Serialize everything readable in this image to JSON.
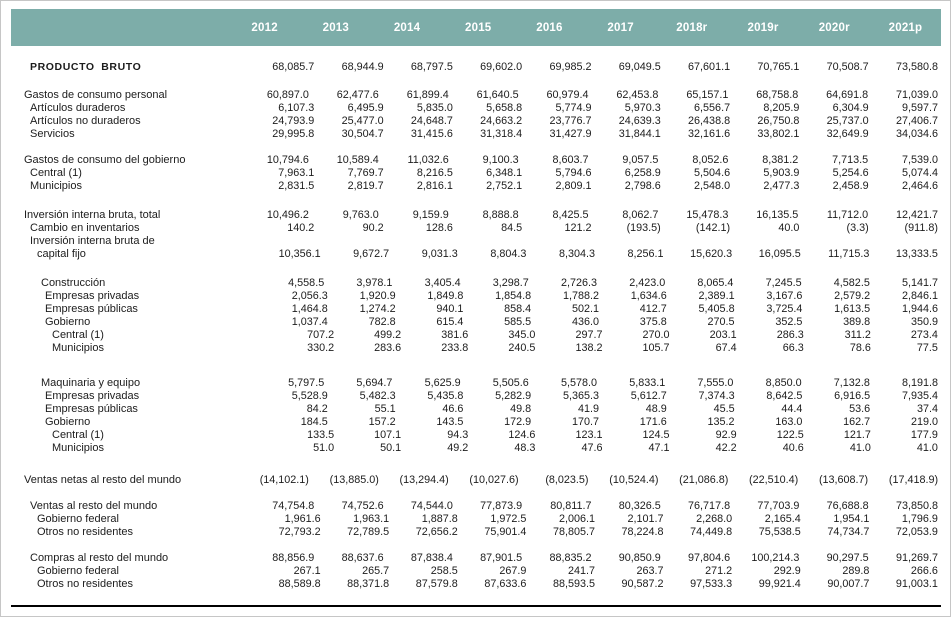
{
  "document": {
    "title_row_label": "PRODUCTO BRUTO",
    "accent_color": "#7dada9",
    "rule_color": "#000000"
  },
  "table": {
    "columns": [
      "2012",
      "2013",
      "2014",
      "2015",
      "2016",
      "2017",
      "2018r",
      "2019r",
      "2020r",
      "2021p"
    ],
    "rows": [
      {
        "type": "data",
        "label": "PRODUCTO BRUTO",
        "indent": 1,
        "caps": true,
        "values": [
          "68,085.7",
          "68,944.9",
          "68,797.5",
          "69,602.0",
          "69,985.2",
          "69,049.5",
          "67,601.1",
          "70,765.1",
          "70,508.7",
          "73,580.8"
        ]
      },
      {
        "type": "spacer",
        "h": 15
      },
      {
        "type": "data",
        "label": "Gastos de consumo personal",
        "indent": 0,
        "values": [
          "60,897.0",
          "62,477.6",
          "61,899.4",
          "61,640.5",
          "60,979.4",
          "62,453.8",
          "65,157.1",
          "68,758.8",
          "64,691.8",
          "71,039.0"
        ]
      },
      {
        "type": "data",
        "label": "Artículos duraderos",
        "indent": 1,
        "values": [
          "6,107.3",
          "6,495.9",
          "5,835.0",
          "5,658.8",
          "5,774.9",
          "5,970.3",
          "6,556.7",
          "8,205.9",
          "6,304.9",
          "9,597.7"
        ]
      },
      {
        "type": "data",
        "label": "Artículos no duraderos",
        "indent": 1,
        "values": [
          "24,793.9",
          "25,477.0",
          "24,648.7",
          "24,663.2",
          "23,776.7",
          "24,639.3",
          "26,438.8",
          "26,750.8",
          "25,737.0",
          "27,406.7"
        ]
      },
      {
        "type": "data",
        "label": "Servicios",
        "indent": 1,
        "values": [
          "29,995.8",
          "30,504.7",
          "31,415.6",
          "31,318.4",
          "31,427.9",
          "31,844.1",
          "32,161.6",
          "33,802.1",
          "32,649.9",
          "34,034.6"
        ]
      },
      {
        "type": "spacer",
        "h": 13
      },
      {
        "type": "data",
        "label": "Gastos de consumo del gobierno",
        "indent": 0,
        "values": [
          "10,794.6",
          "10,589.4",
          "11,032.6",
          "9,100.3",
          "8,603.7",
          "9,057.5",
          "8,052.6",
          "8,381.2",
          "7,713.5",
          "7,539.0"
        ]
      },
      {
        "type": "data",
        "label": "Central (1)",
        "indent": 1,
        "values": [
          "7,963.1",
          "7,769.7",
          "8,216.5",
          "6,348.1",
          "5,794.6",
          "6,258.9",
          "5,504.6",
          "5,903.9",
          "5,254.6",
          "5,074.4"
        ]
      },
      {
        "type": "data",
        "label": "Municipios",
        "indent": 1,
        "values": [
          "2,831.5",
          "2,819.7",
          "2,816.1",
          "2,752.1",
          "2,809.1",
          "2,798.6",
          "2,548.0",
          "2,477.3",
          "2,458.9",
          "2,464.6"
        ]
      },
      {
        "type": "spacer",
        "h": 16
      },
      {
        "type": "data",
        "label": "Inversión interna bruta, total",
        "indent": 0,
        "values": [
          "10,496.2",
          "9,763.0",
          "9,159.9",
          "8,888.8",
          "8,425.5",
          "8,062.7",
          "15,478.3",
          "16,135.5",
          "11,712.0",
          "12,421.7"
        ]
      },
      {
        "type": "data",
        "label": "Cambio en inventarios",
        "indent": 1,
        "values": [
          "140.2",
          "90.2",
          "128.6",
          "84.5",
          "121.2",
          "(193.5)",
          "(142.1)",
          "40.0",
          "(3.3)",
          "(911.8)"
        ]
      },
      {
        "type": "data",
        "label": "Inversión interna bruta de",
        "indent": 1,
        "values": [
          "",
          "",
          "",
          "",
          "",
          "",
          "",
          "",
          "",
          ""
        ]
      },
      {
        "type": "data",
        "label": "capital fijo",
        "indent": 2,
        "values": [
          "10,356.1",
          "9,672.7",
          "9,031.3",
          "8,804.3",
          "8,304.3",
          "8,256.1",
          "15,620.3",
          "16,095.5",
          "11,715.3",
          "13,333.5"
        ]
      },
      {
        "type": "spacer",
        "h": 16
      },
      {
        "type": "data",
        "label": "Construcción",
        "indent": 3,
        "values": [
          "4,558.5",
          "3,978.1",
          "3,405.4",
          "3,298.7",
          "2,726.3",
          "2,423.0",
          "8,065.4",
          "7,245.5",
          "4,582.5",
          "5,141.7"
        ]
      },
      {
        "type": "data",
        "label": "Empresas privadas",
        "indent": 4,
        "values": [
          "2,056.3",
          "1,920.9",
          "1,849.8",
          "1,854.8",
          "1,788.2",
          "1,634.6",
          "2,389.1",
          "3,167.6",
          "2,579.2",
          "2,846.1"
        ]
      },
      {
        "type": "data",
        "label": "Empresas públicas",
        "indent": 4,
        "values": [
          "1,464.8",
          "1,274.2",
          "940.1",
          "858.4",
          "502.1",
          "412.7",
          "5,405.8",
          "3,725.4",
          "1,613.5",
          "1,944.6"
        ]
      },
      {
        "type": "data",
        "label": "Gobierno",
        "indent": 4,
        "values": [
          "1,037.4",
          "782.8",
          "615.4",
          "585.5",
          "436.0",
          "375.8",
          "270.5",
          "352.5",
          "389.8",
          "350.9"
        ]
      },
      {
        "type": "data",
        "label": "Central  (1)",
        "indent": 5,
        "values": [
          "707.2",
          "499.2",
          "381.6",
          "345.0",
          "297.7",
          "270.0",
          "203.1",
          "286.3",
          "311.2",
          "273.4"
        ]
      },
      {
        "type": "data",
        "label": "Municipios",
        "indent": 5,
        "values": [
          "330.2",
          "283.6",
          "233.8",
          "240.5",
          "138.2",
          "105.7",
          "67.4",
          "66.3",
          "78.6",
          "77.5"
        ]
      },
      {
        "type": "spacer",
        "h": 22
      },
      {
        "type": "data",
        "label": "Maquinaria y equipo",
        "indent": 3,
        "values": [
          "5,797.5",
          "5,694.7",
          "5,625.9",
          "5,505.6",
          "5,578.0",
          "5,833.1",
          "7,555.0",
          "8,850.0",
          "7,132.8",
          "8,191.8"
        ]
      },
      {
        "type": "data",
        "label": "Empresas privadas",
        "indent": 4,
        "values": [
          "5,528.9",
          "5,482.3",
          "5,435.8",
          "5,282.9",
          "5,365.3",
          "5,612.7",
          "7,374.3",
          "8,642.5",
          "6,916.5",
          "7,935.4"
        ]
      },
      {
        "type": "data",
        "label": "Empresas públicas",
        "indent": 4,
        "values": [
          "84.2",
          "55.1",
          "46.6",
          "49.8",
          "41.9",
          "48.9",
          "45.5",
          "44.4",
          "53.6",
          "37.4"
        ]
      },
      {
        "type": "data",
        "label": "Gobierno",
        "indent": 4,
        "values": [
          "184.5",
          "157.2",
          "143.5",
          "172.9",
          "170.7",
          "171.6",
          "135.2",
          "163.0",
          "162.7",
          "219.0"
        ]
      },
      {
        "type": "data",
        "label": "Central  (1)",
        "indent": 5,
        "values": [
          "133.5",
          "107.1",
          "94.3",
          "124.6",
          "123.1",
          "124.5",
          "92.9",
          "122.5",
          "121.7",
          "177.9"
        ]
      },
      {
        "type": "data",
        "label": "Municipios",
        "indent": 5,
        "values": [
          "51.0",
          "50.1",
          "49.2",
          "48.3",
          "47.6",
          "47.1",
          "42.2",
          "40.6",
          "41.0",
          "41.0"
        ]
      },
      {
        "type": "spacer",
        "h": 19
      },
      {
        "type": "data",
        "label": "Ventas netas al resto del mundo",
        "indent": 0,
        "values": [
          "(14,102.1)",
          "(13,885.0)",
          "(13,294.4)",
          "(10,027.6)",
          "(8,023.5)",
          "(10,524.4)",
          "(21,086.8)",
          "(22,510.4)",
          "(13,608.7)",
          "(17,418.9)"
        ]
      },
      {
        "type": "spacer",
        "h": 13
      },
      {
        "type": "data",
        "label": "Ventas al resto del mundo",
        "indent": 1,
        "values": [
          "74,754.8",
          "74,752.6",
          "74,544.0",
          "77,873.9",
          "80,811.7",
          "80,326.5",
          "76,717.8",
          "77,703.9",
          "76,688.8",
          "73,850.8"
        ]
      },
      {
        "type": "data",
        "label": "Gobierno federal",
        "indent": 2,
        "values": [
          "1,961.6",
          "1,963.1",
          "1,887.8",
          "1,972.5",
          "2,006.1",
          "2,101.7",
          "2,268.0",
          "2,165.4",
          "1,954.1",
          "1,796.9"
        ]
      },
      {
        "type": "data",
        "label": "Otros no residentes",
        "indent": 2,
        "values": [
          "72,793.2",
          "72,789.5",
          "72,656.2",
          "75,901.4",
          "78,805.7",
          "78,224.8",
          "74,449.8",
          "75,538.5",
          "74,734.7",
          "72,053.9"
        ]
      },
      {
        "type": "spacer",
        "h": 13
      },
      {
        "type": "data",
        "label": "Compras al resto del mundo",
        "indent": 1,
        "values": [
          "88,856.9",
          "88,637.6",
          "87,838.4",
          "87,901.5",
          "88,835.2",
          "90,850.9",
          "97,804.6",
          "100,214.3",
          "90,297.5",
          "91,269.7"
        ]
      },
      {
        "type": "data",
        "label": "Gobierno federal",
        "indent": 2,
        "values": [
          "267.1",
          "265.7",
          "258.5",
          "267.9",
          "241.7",
          "263.7",
          "271.2",
          "292.9",
          "289.8",
          "266.6"
        ]
      },
      {
        "type": "data",
        "label": "Otros no residentes",
        "indent": 2,
        "values": [
          "88,589.8",
          "88,371.8",
          "87,579.8",
          "87,633.6",
          "88,593.5",
          "90,587.2",
          "97,533.3",
          "99,921.4",
          "90,007.7",
          "91,003.1"
        ]
      }
    ]
  }
}
